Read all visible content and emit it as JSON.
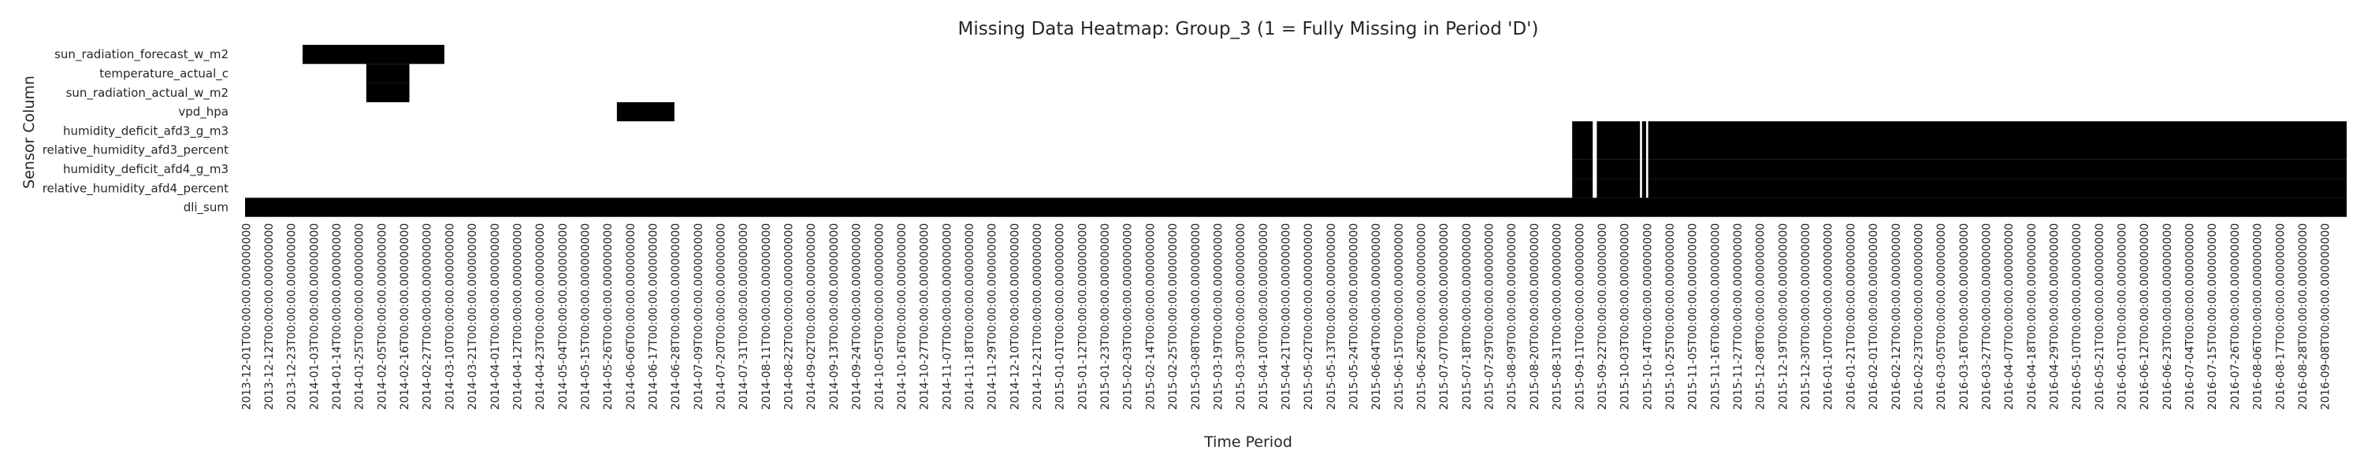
{
  "chart_data": {
    "type": "heatmap",
    "title": "Missing Data Heatmap: Group_3 (1 = Fully Missing in Period 'D')",
    "xlabel": "Time Period",
    "ylabel": "Sensor Column",
    "rows": [
      "sun_radiation_forecast_w_m2",
      "temperature_actual_c",
      "sun_radiation_actual_w_m2",
      "vpd_hpa",
      "humidity_deficit_afd3_g_m3",
      "relative_humidity_afd3_percent",
      "humidity_deficit_afd4_g_m3",
      "relative_humidity_afd4_percent",
      "dli_sum"
    ],
    "period_start": "2013-12-01",
    "period_end": "2016-09-19",
    "x_tick_labels": [
      "2013-12-01T00:00:00.000000000",
      "2013-12-12T00:00:00.000000000",
      "2013-12-23T00:00:00.000000000",
      "2014-01-03T00:00:00.000000000",
      "2014-01-14T00:00:00.000000000",
      "2014-01-25T00:00:00.000000000",
      "2014-02-05T00:00:00.000000000",
      "2014-02-16T00:00:00.000000000",
      "2014-02-27T00:00:00.000000000",
      "2014-03-10T00:00:00.000000000",
      "2014-03-21T00:00:00.000000000",
      "2014-04-01T00:00:00.000000000",
      "2014-04-12T00:00:00.000000000",
      "2014-04-23T00:00:00.000000000",
      "2014-05-04T00:00:00.000000000",
      "2014-05-15T00:00:00.000000000",
      "2014-05-26T00:00:00.000000000",
      "2014-06-06T00:00:00.000000000",
      "2014-06-17T00:00:00.000000000",
      "2014-06-28T00:00:00.000000000",
      "2014-07-09T00:00:00.000000000",
      "2014-07-20T00:00:00.000000000",
      "2014-07-31T00:00:00.000000000",
      "2014-08-11T00:00:00.000000000",
      "2014-08-22T00:00:00.000000000",
      "2014-09-02T00:00:00.000000000",
      "2014-09-13T00:00:00.000000000",
      "2014-09-24T00:00:00.000000000",
      "2014-10-05T00:00:00.000000000",
      "2014-10-16T00:00:00.000000000",
      "2014-10-27T00:00:00.000000000",
      "2014-11-07T00:00:00.000000000",
      "2014-11-18T00:00:00.000000000",
      "2014-11-29T00:00:00.000000000",
      "2014-12-10T00:00:00.000000000",
      "2014-12-21T00:00:00.000000000",
      "2015-01-01T00:00:00.000000000",
      "2015-01-12T00:00:00.000000000",
      "2015-01-23T00:00:00.000000000",
      "2015-02-03T00:00:00.000000000",
      "2015-02-14T00:00:00.000000000",
      "2015-02-25T00:00:00.000000000",
      "2015-03-08T00:00:00.000000000",
      "2015-03-19T00:00:00.000000000",
      "2015-03-30T00:00:00.000000000",
      "2015-04-10T00:00:00.000000000",
      "2015-04-21T00:00:00.000000000",
      "2015-05-02T00:00:00.000000000",
      "2015-05-13T00:00:00.000000000",
      "2015-05-24T00:00:00.000000000",
      "2015-06-04T00:00:00.000000000",
      "2015-06-15T00:00:00.000000000",
      "2015-06-26T00:00:00.000000000",
      "2015-07-07T00:00:00.000000000",
      "2015-07-18T00:00:00.000000000",
      "2015-07-29T00:00:00.000000000",
      "2015-08-09T00:00:00.000000000",
      "2015-08-20T00:00:00.000000000",
      "2015-08-31T00:00:00.000000000",
      "2015-09-11T00:00:00.000000000",
      "2015-09-22T00:00:00.000000000",
      "2015-10-03T00:00:00.000000000",
      "2015-10-14T00:00:00.000000000",
      "2015-10-25T00:00:00.000000000",
      "2015-11-05T00:00:00.000000000",
      "2015-11-16T00:00:00.000000000",
      "2015-11-27T00:00:00.000000000",
      "2015-12-08T00:00:00.000000000",
      "2015-12-19T00:00:00.000000000",
      "2015-12-30T00:00:00.000000000",
      "2016-01-10T00:00:00.000000000",
      "2016-01-21T00:00:00.000000000",
      "2016-02-01T00:00:00.000000000",
      "2016-02-12T00:00:00.000000000",
      "2016-02-23T00:00:00.000000000",
      "2016-03-05T00:00:00.000000000",
      "2016-03-16T00:00:00.000000000",
      "2016-03-27T00:00:00.000000000",
      "2016-04-07T00:00:00.000000000",
      "2016-04-18T00:00:00.000000000",
      "2016-04-29T00:00:00.000000000",
      "2016-05-10T00:00:00.000000000",
      "2016-05-21T00:00:00.000000000",
      "2016-06-01T00:00:00.000000000",
      "2016-06-12T00:00:00.000000000",
      "2016-06-23T00:00:00.000000000",
      "2016-07-04T00:00:00.000000000",
      "2016-07-15T00:00:00.000000000",
      "2016-07-26T00:00:00.000000000",
      "2016-08-06T00:00:00.000000000",
      "2016-08-17T00:00:00.000000000",
      "2016-08-28T00:00:00.000000000",
      "2016-09-08T00:00:00.000000000"
    ],
    "missing_periods": [
      {
        "row": "sun_radiation_forecast_w_m2",
        "start": "2013-12-29",
        "end": "2014-03-07"
      },
      {
        "row": "temperature_actual_c",
        "start": "2014-01-29",
        "end": "2014-02-18"
      },
      {
        "row": "sun_radiation_actual_w_m2",
        "start": "2014-01-29",
        "end": "2014-02-18"
      },
      {
        "row": "vpd_hpa",
        "start": "2014-05-31",
        "end": "2014-06-27"
      },
      {
        "row": "humidity_deficit_afd3_g_m3",
        "start": "2015-09-08",
        "end": "2015-09-17"
      },
      {
        "row": "humidity_deficit_afd3_g_m3",
        "start": "2015-09-20",
        "end": "2015-10-10"
      },
      {
        "row": "humidity_deficit_afd3_g_m3",
        "start": "2015-10-12",
        "end": "2015-10-13"
      },
      {
        "row": "humidity_deficit_afd3_g_m3",
        "start": "2015-10-15",
        "end": "2016-09-18"
      },
      {
        "row": "relative_humidity_afd3_percent",
        "start": "2015-09-08",
        "end": "2015-09-17"
      },
      {
        "row": "relative_humidity_afd3_percent",
        "start": "2015-09-20",
        "end": "2015-10-10"
      },
      {
        "row": "relative_humidity_afd3_percent",
        "start": "2015-10-12",
        "end": "2015-10-13"
      },
      {
        "row": "relative_humidity_afd3_percent",
        "start": "2015-10-15",
        "end": "2016-09-18"
      },
      {
        "row": "humidity_deficit_afd4_g_m3",
        "start": "2015-09-08",
        "end": "2015-09-17"
      },
      {
        "row": "humidity_deficit_afd4_g_m3",
        "start": "2015-09-20",
        "end": "2015-10-10"
      },
      {
        "row": "humidity_deficit_afd4_g_m3",
        "start": "2015-10-12",
        "end": "2015-10-13"
      },
      {
        "row": "humidity_deficit_afd4_g_m3",
        "start": "2015-10-15",
        "end": "2016-09-18"
      },
      {
        "row": "relative_humidity_afd4_percent",
        "start": "2015-09-08",
        "end": "2015-09-17"
      },
      {
        "row": "relative_humidity_afd4_percent",
        "start": "2015-09-20",
        "end": "2015-10-10"
      },
      {
        "row": "relative_humidity_afd4_percent",
        "start": "2015-10-12",
        "end": "2015-10-13"
      },
      {
        "row": "relative_humidity_afd4_percent",
        "start": "2015-10-15",
        "end": "2016-09-18"
      },
      {
        "row": "dli_sum",
        "start": "2013-12-01",
        "end": "2016-09-18"
      }
    ],
    "missing_value": 1,
    "present_value": 0,
    "colors": {
      "missing": "#000000",
      "present": "#ffffff"
    },
    "legend": "none",
    "grid": false
  }
}
